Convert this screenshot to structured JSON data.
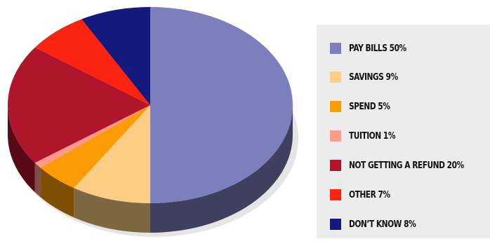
{
  "chart_data": {
    "type": "pie",
    "style": "3d",
    "legend_position": "right",
    "slices": [
      {
        "label": "PAY BILLS 50%",
        "name": "Pay Bills",
        "value": 50,
        "color": "#7b7fbb"
      },
      {
        "label": "SAVINGS 9%",
        "name": "Savings",
        "value": 9,
        "color": "#fccd86"
      },
      {
        "label": "SPEND 5%",
        "name": "Spend",
        "value": 5,
        "color": "#fb9b06"
      },
      {
        "label": "TUITION 1%",
        "name": "Tuition",
        "value": 1,
        "color": "#fd9b8b"
      },
      {
        "label": "NOT GETTING A REFUND 20%",
        "name": "Not Getting a Refund",
        "value": 20,
        "color": "#b0152c"
      },
      {
        "label": "OTHER 7%",
        "name": "Other",
        "value": 7,
        "color": "#fa2410"
      },
      {
        "label": "DON’T KNOW 8%",
        "name": "Don't Know",
        "value": 8,
        "color": "#14197e"
      }
    ]
  }
}
